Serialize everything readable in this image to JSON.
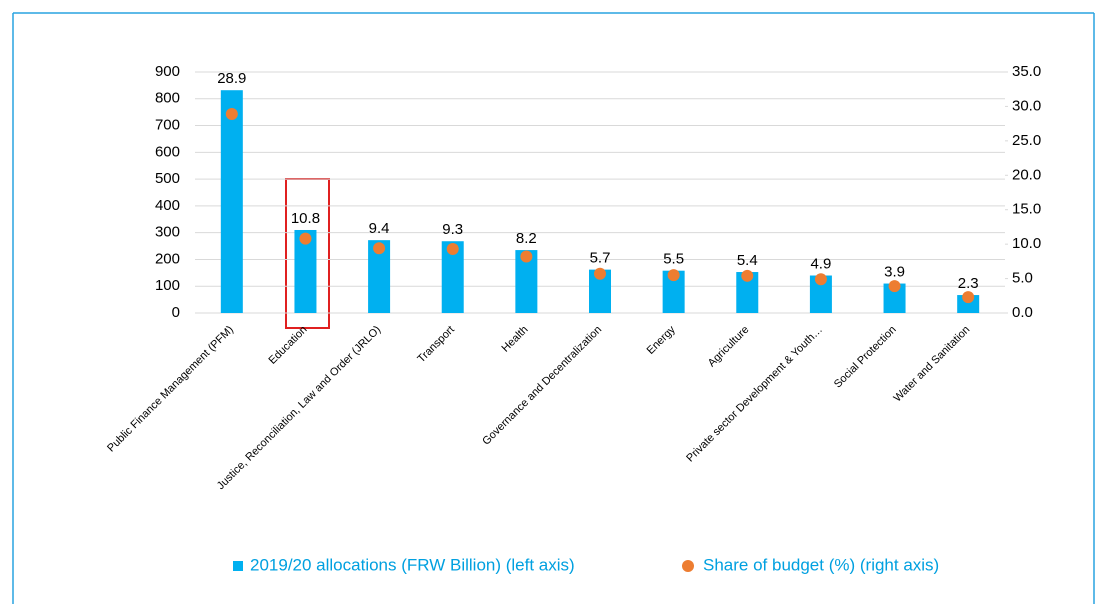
{
  "chart_data": {
    "type": "bar",
    "categories": [
      "Public Finance Management (PFM)",
      "Education",
      "Justice, Reconciliation, Law and Order (JRLO)",
      "Transport",
      "Health",
      "Governance and Decentralization",
      "Energy",
      "Agriculture",
      "Private sector Development & Youth…",
      "Social Protection",
      "Water and Sanitation"
    ],
    "series": [
      {
        "name": "2019/20 allocations (FRW Billion) (left axis)",
        "color": "#00b0f0",
        "values": [
          832,
          310,
          272,
          268,
          235,
          162,
          158,
          153,
          140,
          110,
          67
        ]
      },
      {
        "name": "Share of budget (%) (right axis)",
        "color": "#ed7d31",
        "axis": "y2",
        "values": [
          28.9,
          10.8,
          9.4,
          9.3,
          8.2,
          5.7,
          5.5,
          5.4,
          4.9,
          3.9,
          2.3
        ]
      }
    ],
    "ylim": [
      0,
      900
    ],
    "yticks": [
      0,
      100,
      200,
      300,
      400,
      500,
      600,
      700,
      800,
      900
    ],
    "y2lim": [
      0,
      35
    ],
    "y2ticks": [
      {
        "value": 0,
        "label": "0.0"
      },
      {
        "value": 5,
        "label": "5.0"
      },
      {
        "value": 10,
        "label": "10.0"
      },
      {
        "value": 15,
        "label": "15.0"
      },
      {
        "value": 20,
        "label": "20.0"
      },
      {
        "value": 25,
        "label": "25.0"
      },
      {
        "value": 30,
        "label": "30.0"
      },
      {
        "value": 35,
        "label": "35.0"
      }
    ],
    "grid": true
  }
}
